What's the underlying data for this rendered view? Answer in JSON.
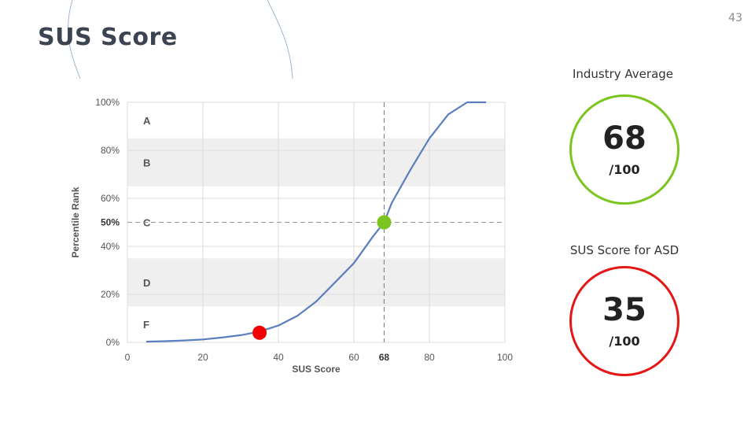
{
  "slide": {
    "title": "SUS Score",
    "page_number": "43"
  },
  "industry_average": {
    "label": "Industry Average",
    "value": "68",
    "denominator": "/100",
    "color": "#7cc520"
  },
  "asd_score": {
    "label": "SUS Score for ASD",
    "value": "35",
    "denominator": "/100",
    "color": "#e41616"
  },
  "chart_data": {
    "type": "line",
    "xlabel": "SUS Score",
    "ylabel": "Percentile Rank",
    "xlim": [
      0,
      100
    ],
    "ylim": [
      0,
      100
    ],
    "x_ticks": [
      "0",
      "20",
      "40",
      "60",
      "68",
      "80",
      "100"
    ],
    "y_ticks": [
      "0%",
      "20%",
      "40%",
      "50%",
      "60%",
      "80%",
      "100%"
    ],
    "grid": true,
    "line_color": "#5b7fbe",
    "grade_bands": [
      {
        "label": "A",
        "y_min": 85,
        "y_max": 100,
        "shaded": false
      },
      {
        "label": "B",
        "y_min": 65,
        "y_max": 85,
        "shaded": true
      },
      {
        "label": "C",
        "y_min": 35,
        "y_max": 65,
        "shaded": false
      },
      {
        "label": "D",
        "y_min": 15,
        "y_max": 35,
        "shaded": true
      },
      {
        "label": "F",
        "y_min": 0,
        "y_max": 15,
        "shaded": false
      }
    ],
    "reference_lines": {
      "x": 68,
      "y": 50
    },
    "series": [
      {
        "x": [
          5,
          10,
          15,
          20,
          25,
          30,
          35,
          40,
          45,
          50,
          55,
          60,
          65,
          68,
          70,
          75,
          80,
          85,
          90,
          95
        ],
        "y": [
          0.3,
          0.5,
          0.8,
          1.2,
          2,
          3,
          4.5,
          7,
          11,
          17,
          25,
          33,
          44,
          50,
          58,
          72,
          85,
          95,
          100,
          100
        ]
      }
    ],
    "highlight_points": [
      {
        "x": 68,
        "y": 50,
        "color": "#7cc520"
      },
      {
        "x": 35,
        "y": 4,
        "color": "#f00000"
      }
    ]
  }
}
